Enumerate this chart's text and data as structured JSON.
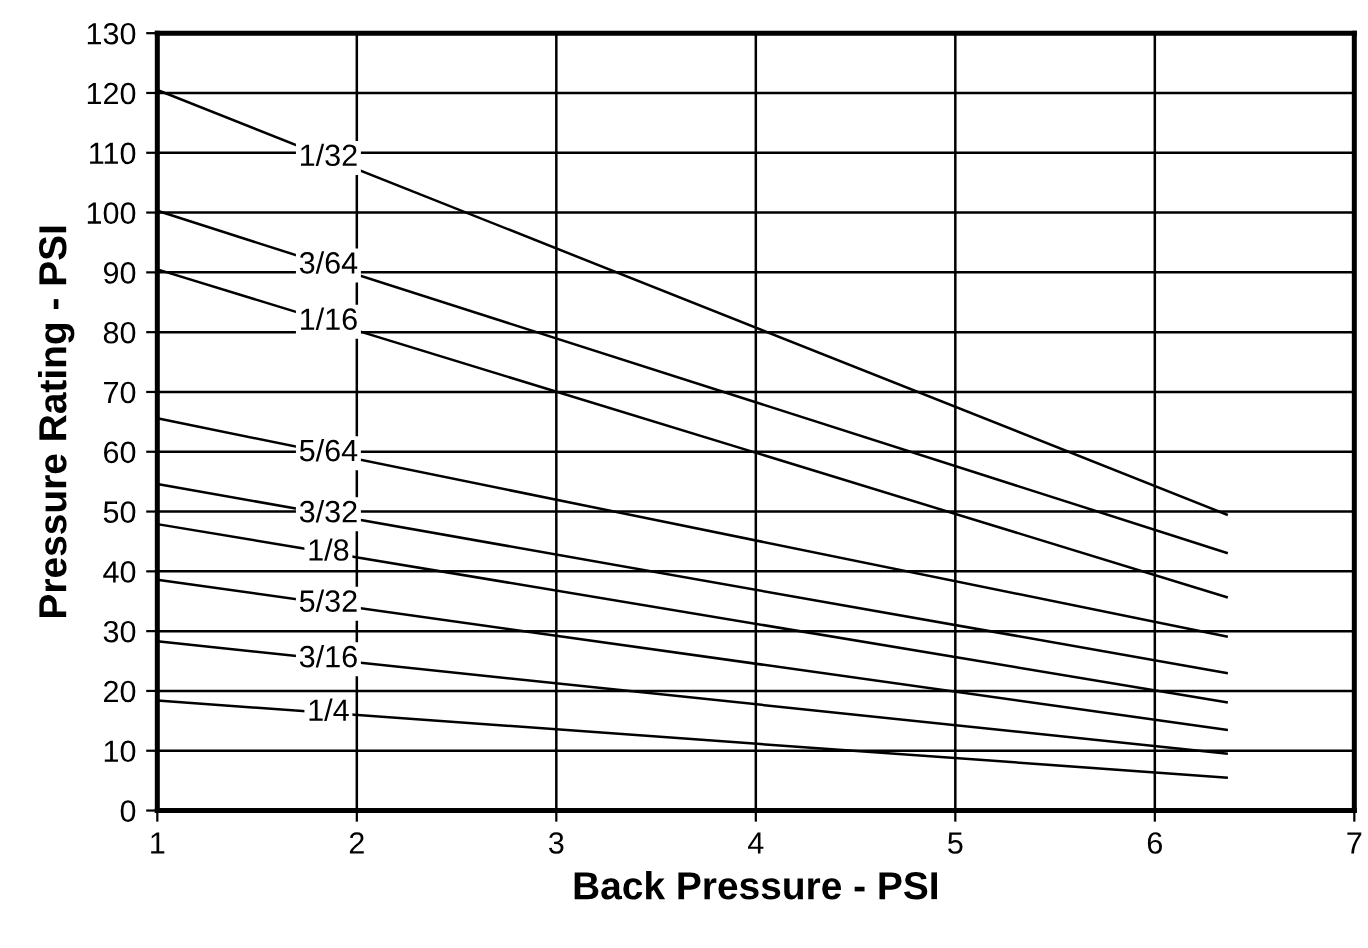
{
  "chart_data": {
    "type": "line",
    "xlabel": "Back Pressure - PSI",
    "ylabel": "Pressure Rating - PSI",
    "x": [
      1,
      6.36
    ],
    "series": [
      {
        "name": "1/32",
        "color": "#000000",
        "values": [
          120.5,
          49.5
        ]
      },
      {
        "name": "3/64",
        "color": "#000000",
        "values": [
          100.3,
          43.1
        ]
      },
      {
        "name": "1/16",
        "color": "#000000",
        "values": [
          90.5,
          35.7
        ]
      },
      {
        "name": "5/64",
        "color": "#000000",
        "values": [
          65.6,
          29.1
        ]
      },
      {
        "name": "3/32",
        "color": "#000000",
        "values": [
          54.6,
          23
        ]
      },
      {
        "name": "1/8",
        "color": "#000000",
        "values": [
          47.9,
          18.1
        ]
      },
      {
        "name": "5/32",
        "color": "#000000",
        "values": [
          38.6,
          13.5
        ]
      },
      {
        "name": "3/16",
        "color": "#000000",
        "values": [
          28.3,
          9.5
        ]
      },
      {
        "name": "1/4",
        "color": "#000000",
        "values": [
          18.4,
          5.5
        ]
      }
    ],
    "xlim": [
      1,
      7
    ],
    "xticks": [
      1,
      2,
      3,
      4,
      5,
      6,
      7
    ],
    "ylim": [
      0,
      130
    ],
    "yticks": [
      0,
      10,
      20,
      30,
      40,
      50,
      60,
      70,
      80,
      90,
      100,
      110,
      120,
      130
    ],
    "grid": true,
    "legend": false,
    "marker": "none",
    "line_style": "solid"
  }
}
